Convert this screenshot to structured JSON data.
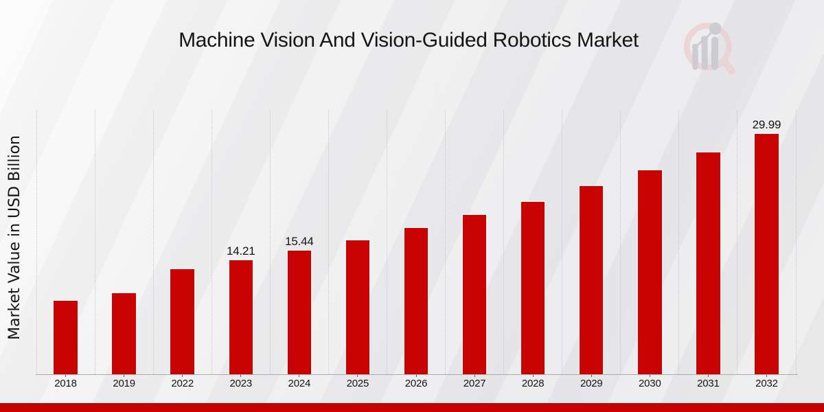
{
  "header": {
    "title": "Machine Vision And Vision-Guided Robotics Market"
  },
  "chart_data": {
    "type": "bar",
    "title": "Machine Vision And Vision-Guided Robotics Market",
    "xlabel": "",
    "ylabel": "Market Value in USD Billion",
    "categories": [
      "2018",
      "2019",
      "2022",
      "2023",
      "2024",
      "2025",
      "2026",
      "2027",
      "2028",
      "2029",
      "2030",
      "2031",
      "2032"
    ],
    "values": [
      9.2,
      10.1,
      13.1,
      14.21,
      15.44,
      16.75,
      18.25,
      19.85,
      21.55,
      23.5,
      25.5,
      27.65,
      29.99
    ],
    "bar_labels": [
      "",
      "",
      "",
      "14.21",
      "15.44",
      "",
      "",
      "",
      "",
      "",
      "",
      "",
      "29.99"
    ],
    "ylim": [
      0,
      33
    ],
    "grid": "vertical dotted separators between categories, no horizontal gridlines",
    "legend": "none",
    "y_tick_labels": "none"
  },
  "colors": {
    "bar": "#c90202",
    "axis_line": "#ababab",
    "gridline": "#c7c7c9",
    "tick": "#555555",
    "text": "#141414",
    "footer_band": "#c60100",
    "footer_band_edge": "#a31212",
    "logo_pink": "#ecd1d4",
    "logo_gray": "#c8c8cc"
  },
  "branding": {
    "logo_icon": "magnifier-growth-bars-logo"
  }
}
